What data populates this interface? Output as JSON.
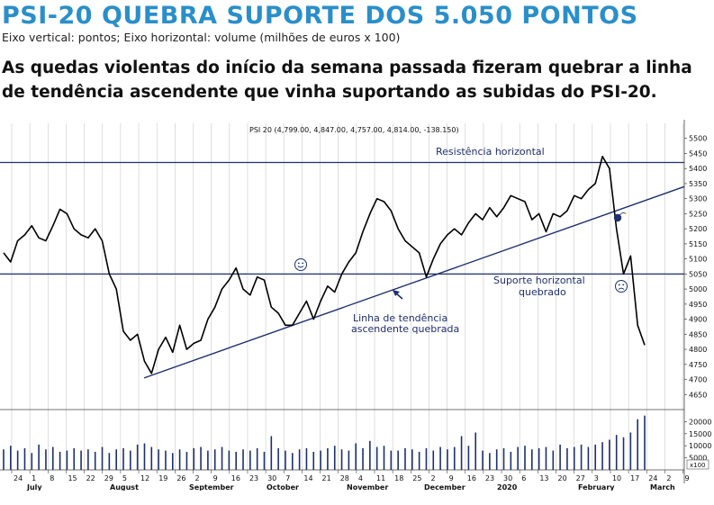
{
  "header": {
    "title": "PSI-20 QUEBRA SUPORTE DOS 5.050 PONTOS",
    "axes_note": "Eixo vertical: pontos; Eixo horizontal: volume (milhões de euros x 100)",
    "lead": "As quedas violentas do início da semana passada fizeram quebrar a linha de tendência ascendente que vinha suportando as subidas do PSI-20."
  },
  "chart_data": {
    "type": "line",
    "title": "PSI 20 (4,799.00, 4,847.00, 4,757.00, 4,814.00, -138.150)",
    "ylim": [
      4600,
      5550
    ],
    "y_ticks": [
      5500,
      5450,
      5400,
      5350,
      5300,
      5250,
      5200,
      5150,
      5100,
      5050,
      5000,
      4950,
      4900,
      4850,
      4800,
      4750,
      4700,
      4650
    ],
    "y_tick_labels": [
      "5500",
      "5450",
      "5400",
      "5350",
      "5300",
      "5250",
      "5200",
      "5150",
      "5100",
      "5050",
      "5000",
      "4950",
      "4900",
      "4850",
      "4800",
      "4750",
      "4700",
      "4650"
    ],
    "volume_ylim": [
      0,
      25000
    ],
    "volume_ticks": [
      5000,
      10000,
      15000,
      20000
    ],
    "volume_tick_labels": [
      "5000",
      "10000",
      "15000",
      "20000"
    ],
    "volume_unit_label": "x100",
    "x_tick_labels": [
      "24",
      "1",
      "8",
      "15",
      "22",
      "29",
      "5",
      "12",
      "19",
      "26",
      "2",
      "9",
      "16",
      "23",
      "30",
      "7",
      "14",
      "21",
      "28",
      "4",
      "11",
      "18",
      "25",
      "2",
      "9",
      "16",
      "23",
      "30",
      "6",
      "13",
      "20",
      "27",
      "3",
      "10",
      "17",
      "24",
      "2",
      "9"
    ],
    "month_labels": [
      "July",
      "August",
      "September",
      "October",
      "November",
      "December",
      "2020",
      "February",
      "March"
    ],
    "series": [
      {
        "values": [
          5120,
          5090,
          5160,
          5180,
          5210,
          5170,
          5160,
          5210,
          5265,
          5250,
          5200,
          5180,
          5170,
          5200,
          5160,
          5050,
          5000,
          4860,
          4830,
          4850,
          4760,
          4720,
          4800,
          4840,
          4790,
          4880,
          4800,
          4820,
          4830,
          4900,
          4940,
          5000,
          5030,
          5070,
          5000,
          4980,
          5040,
          5030,
          4940,
          4920,
          4880,
          4880,
          4920,
          4960,
          4900,
          4960,
          5010,
          4990,
          5050,
          5090,
          5120,
          5190,
          5250,
          5300,
          5290,
          5260,
          5200,
          5160,
          5140,
          5120,
          5040,
          5100,
          5150,
          5180,
          5200,
          5180,
          5220,
          5250,
          5230,
          5270,
          5240,
          5270,
          5310,
          5300,
          5290,
          5230,
          5250,
          5190,
          5250,
          5240,
          5260,
          5310,
          5300,
          5330,
          5350,
          5440,
          5400,
          5200,
          5050,
          5110,
          4880,
          4814
        ],
        "color": "#000000"
      }
    ],
    "volume": [
      8500,
      10000,
      8000,
      9000,
      7000,
      10500,
      8500,
      9500,
      7500,
      8000,
      9000,
      8000,
      8500,
      7500,
      9500,
      7000,
      8500,
      9000,
      8000,
      10500,
      11000,
      9500,
      8500,
      8000,
      7000,
      8500,
      7500,
      9000,
      9500,
      8000,
      8500,
      9500,
      8000,
      7500,
      8500,
      8000,
      9000,
      7500,
      14000,
      9000,
      8000,
      7000,
      8500,
      9000,
      7500,
      8000,
      9000,
      10000,
      8500,
      8000,
      11000,
      9000,
      12000,
      9500,
      10000,
      8000,
      8000,
      9000,
      8500,
      7500,
      9000,
      8000,
      9500,
      8500,
      9500,
      14000,
      10000,
      15500,
      8000,
      7000,
      8500,
      9000,
      7500,
      9500,
      10000,
      8500,
      9000,
      9500,
      8000,
      10500,
      9000,
      9500,
      10500,
      9500,
      10500,
      11500,
      12500,
      14500,
      13500,
      15500,
      21000,
      22500
    ],
    "resistance_level": 5420,
    "support_level": 5050,
    "trendline": {
      "start": 4705,
      "end": 5340
    },
    "annotations": [
      "Resistência horizontal",
      "Suporte horizontal",
      "quebrado",
      "Linha de tendência",
      "ascendente quebrada"
    ],
    "smiley_icon": "smiley-face-icon",
    "sad_icon": "sad-face-icon",
    "bomb_icon": "bomb-icon",
    "arrow_icon": "arrow-up-left-icon"
  }
}
